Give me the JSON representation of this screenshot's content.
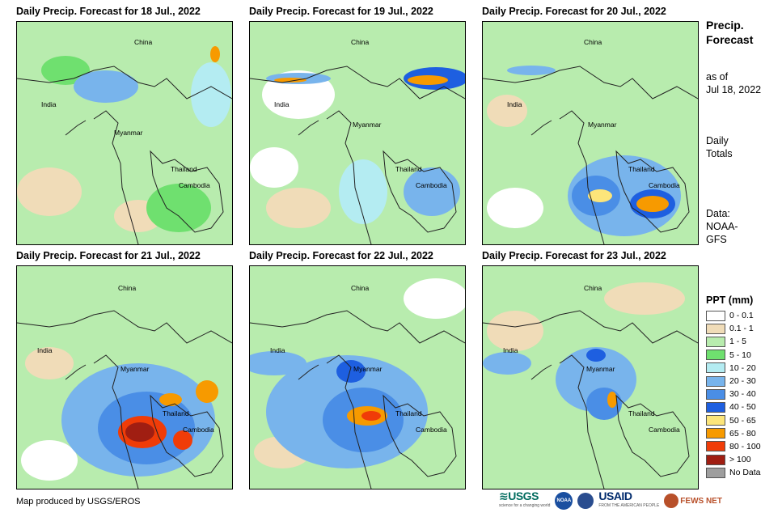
{
  "panels": [
    {
      "title": "Daily Precip. Forecast for 18 Jul., 2022"
    },
    {
      "title": "Daily Precip. Forecast for 19 Jul., 2022"
    },
    {
      "title": "Daily Precip. Forecast for 20 Jul., 2022"
    },
    {
      "title": "Daily Precip. Forecast for 21 Jul., 2022"
    },
    {
      "title": "Daily Precip. Forecast for 22 Jul., 2022"
    },
    {
      "title": "Daily Precip. Forecast for 23 Jul., 2022"
    }
  ],
  "places": {
    "china": "China",
    "india": "India",
    "myanmar": "Myanmar",
    "thailand": "Thailand",
    "cambodia": "Cambodia"
  },
  "side": {
    "title_line1": "Precip.",
    "title_line2": "Forecast",
    "asof_line1": "as of",
    "asof_line2": "Jul 18, 2022",
    "totals_line1": "Daily",
    "totals_line2": "Totals",
    "data_line1": "Data:",
    "data_line2": "NOAA-",
    "data_line3": "GFS"
  },
  "legend": {
    "title": "PPT (mm)",
    "items": [
      {
        "label": "0 - 0.1",
        "color": "#ffffff"
      },
      {
        "label": "0.1 - 1",
        "color": "#f0dcb8"
      },
      {
        "label": "1 - 5",
        "color": "#b8ecae"
      },
      {
        "label": "5 - 10",
        "color": "#6fe06f"
      },
      {
        "label": "10 - 20",
        "color": "#b4ecf2"
      },
      {
        "label": "20 - 30",
        "color": "#78b4ec"
      },
      {
        "label": "30 - 40",
        "color": "#4a8ee6"
      },
      {
        "label": "40 - 50",
        "color": "#1e5fe0"
      },
      {
        "label": "50 - 65",
        "color": "#fce57a"
      },
      {
        "label": "65 - 80",
        "color": "#f79a00"
      },
      {
        "label": "80 - 100",
        "color": "#f03c08"
      },
      {
        "label": "> 100",
        "color": "#a01e12"
      },
      {
        "label": "No Data",
        "color": "#9e9e9e"
      }
    ]
  },
  "credit": "Map produced by USGS/EROS",
  "logos": {
    "usgs": "≋USGS",
    "usgs_tag": "science for a changing world",
    "noaa": "NOAA",
    "usaid": "USAID",
    "usaid_tag": "FROM THE AMERICAN PEOPLE",
    "fews": "FEWS NET"
  }
}
